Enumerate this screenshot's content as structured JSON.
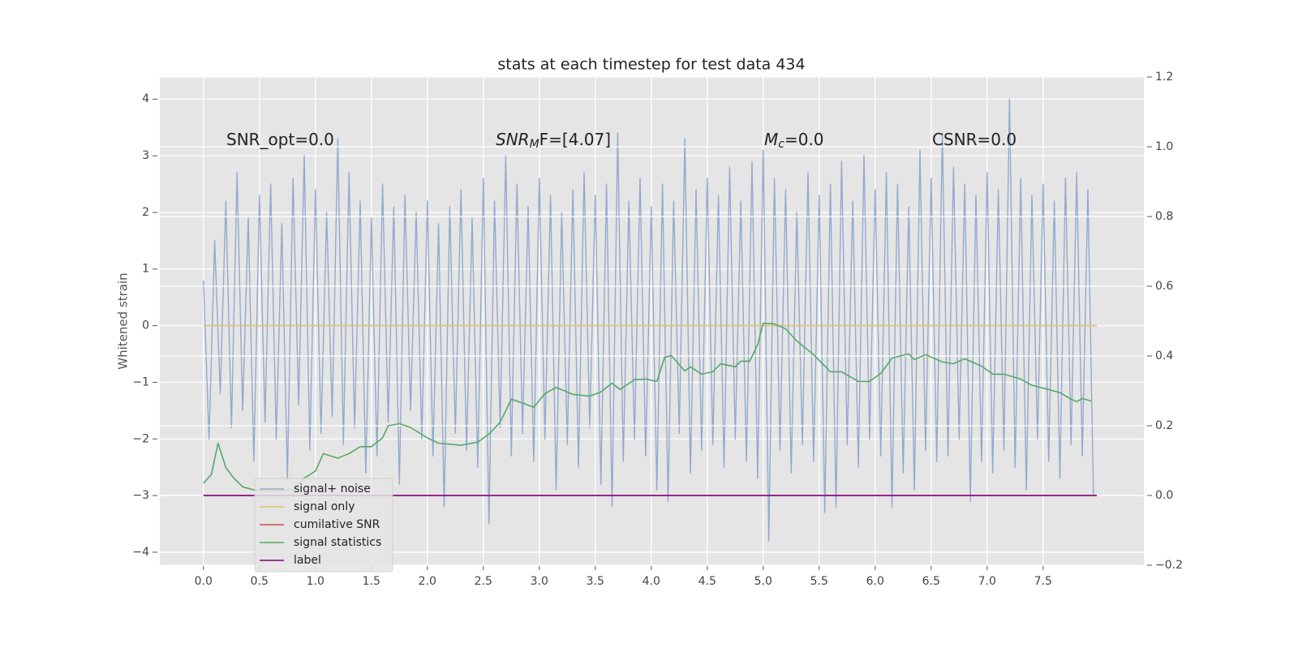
{
  "chart_data": {
    "type": "line",
    "title": "stats at each timestep for test data 434",
    "ylabel": "Whitened strain",
    "annotations": [
      {
        "parts": [
          "SNR_opt=0.0"
        ]
      },
      {
        "parts": [
          "SNR",
          "M",
          "F=[4.07]"
        ]
      },
      {
        "parts": [
          "M",
          "c",
          "=0.0"
        ]
      },
      {
        "parts": [
          "CSNR=0.0"
        ]
      }
    ],
    "xlim": [
      -0.39,
      8.4
    ],
    "ylim": [
      -4.23,
      4.39
    ],
    "y2lim": [
      -0.2,
      1.2
    ],
    "xticks": [
      {
        "value": 0,
        "label": "0.0"
      },
      {
        "value": 0.5,
        "label": "0.5"
      },
      {
        "value": 1,
        "label": "1.0"
      },
      {
        "value": 1.5,
        "label": "1.5"
      },
      {
        "value": 2,
        "label": "2.0"
      },
      {
        "value": 2.5,
        "label": "2.5"
      },
      {
        "value": 3,
        "label": "3.0"
      },
      {
        "value": 3.5,
        "label": "3.5"
      },
      {
        "value": 4,
        "label": "4.0"
      },
      {
        "value": 4.5,
        "label": "4.5"
      },
      {
        "value": 5,
        "label": "5.0"
      },
      {
        "value": 5.5,
        "label": "5.5"
      },
      {
        "value": 6,
        "label": "6.0"
      },
      {
        "value": 6.5,
        "label": "6.5"
      },
      {
        "value": 7,
        "label": "7.0"
      },
      {
        "value": 7.5,
        "label": "7.5"
      }
    ],
    "yticks": [
      {
        "value": -4,
        "label": "−4"
      },
      {
        "value": -3,
        "label": "−3"
      },
      {
        "value": -2,
        "label": "−2"
      },
      {
        "value": -1,
        "label": "−1"
      },
      0,
      1,
      2,
      3,
      4
    ],
    "y2ticks": [
      {
        "value": -0.2,
        "label": "−0.2"
      },
      {
        "value": 0,
        "label": "0.0"
      },
      {
        "value": 0.2,
        "label": "0.2"
      },
      {
        "value": 0.4,
        "label": "0.4"
      },
      {
        "value": 0.6,
        "label": "0.6"
      },
      {
        "value": 0.8,
        "label": "0.8"
      },
      {
        "value": 1,
        "label": "1.0"
      },
      {
        "value": 1.2,
        "label": "1.2"
      }
    ],
    "grid": true,
    "legend": "lower left",
    "series": [
      {
        "name": "signal+ noise",
        "color": "#92a9cf",
        "axis": "y",
        "x": [
          0,
          0.05,
          0.1,
          0.15,
          0.2,
          0.25,
          0.3,
          0.35,
          0.4,
          0.45,
          0.5,
          0.55,
          0.6,
          0.65,
          0.7,
          0.75,
          0.8,
          0.85,
          0.9,
          0.95,
          1,
          1.05,
          1.1,
          1.15,
          1.2,
          1.25,
          1.3,
          1.35,
          1.4,
          1.45,
          1.5,
          1.55,
          1.6,
          1.65,
          1.7,
          1.75,
          1.8,
          1.85,
          1.9,
          1.95,
          2,
          2.05,
          2.1,
          2.15,
          2.2,
          2.25,
          2.3,
          2.35,
          2.4,
          2.45,
          2.5,
          2.55,
          2.6,
          2.65,
          2.7,
          2.75,
          2.8,
          2.85,
          2.9,
          2.95,
          3,
          3.05,
          3.1,
          3.15,
          3.2,
          3.25,
          3.3,
          3.35,
          3.4,
          3.45,
          3.5,
          3.55,
          3.6,
          3.65,
          3.7,
          3.75,
          3.8,
          3.85,
          3.9,
          3.95,
          4,
          4.05,
          4.1,
          4.15,
          4.2,
          4.25,
          4.3,
          4.35,
          4.4,
          4.45,
          4.5,
          4.55,
          4.6,
          4.65,
          4.7,
          4.75,
          4.8,
          4.85,
          4.9,
          4.95,
          5,
          5.05,
          5.1,
          5.15,
          5.2,
          5.25,
          5.3,
          5.35,
          5.4,
          5.45,
          5.5,
          5.55,
          5.6,
          5.65,
          5.7,
          5.75,
          5.8,
          5.85,
          5.9,
          5.95,
          6,
          6.05,
          6.1,
          6.15,
          6.2,
          6.25,
          6.3,
          6.35,
          6.4,
          6.45,
          6.5,
          6.55,
          6.6,
          6.65,
          6.7,
          6.75,
          6.8,
          6.85,
          6.9,
          6.95,
          7,
          7.05,
          7.1,
          7.15,
          7.2,
          7.25,
          7.3,
          7.35,
          7.4,
          7.45,
          7.5,
          7.55,
          7.6,
          7.65,
          7.7,
          7.75,
          7.8,
          7.85,
          7.9,
          7.95
        ],
        "values": [
          0.8,
          -2.0,
          1.5,
          -1.2,
          2.2,
          -1.8,
          2.7,
          -1.5,
          1.9,
          -2.4,
          2.3,
          -1.7,
          2.5,
          -2.0,
          1.8,
          -2.7,
          2.6,
          -1.4,
          3.0,
          -2.2,
          2.4,
          -1.9,
          2.0,
          -1.6,
          3.3,
          -2.1,
          2.7,
          -1.8,
          2.2,
          -2.6,
          1.9,
          -2.3,
          2.5,
          -1.7,
          2.1,
          -2.8,
          2.3,
          -1.5,
          2.0,
          -2.0,
          2.2,
          -2.3,
          1.8,
          -3.2,
          2.1,
          -1.9,
          2.4,
          -2.2,
          1.9,
          -2.5,
          2.6,
          -3.5,
          2.2,
          -1.8,
          3.0,
          -2.3,
          2.5,
          -1.9,
          2.1,
          -2.4,
          2.6,
          -2.0,
          2.3,
          -2.9,
          2.0,
          -2.1,
          2.4,
          -2.5,
          2.7,
          -1.8,
          2.3,
          -2.8,
          2.5,
          -3.2,
          3.4,
          -2.4,
          2.2,
          -2.0,
          2.6,
          -2.3,
          2.1,
          -2.9,
          2.5,
          -3.1,
          2.2,
          -1.9,
          3.3,
          -2.6,
          2.4,
          -2.2,
          2.6,
          -2.1,
          2.3,
          -2.5,
          2.8,
          -2.0,
          2.2,
          -2.4,
          2.9,
          -2.7,
          3.1,
          -3.8,
          2.6,
          -2.2,
          2.4,
          -2.6,
          2.0,
          -2.1,
          2.7,
          -2.4,
          2.3,
          -3.3,
          2.5,
          -3.2,
          2.9,
          -2.1,
          2.2,
          -2.5,
          3.0,
          -2.0,
          2.4,
          -2.3,
          2.7,
          -3.2,
          2.5,
          -2.6,
          2.1,
          -2.9,
          3.1,
          -2.2,
          2.6,
          -2.4,
          3.4,
          -2.3,
          2.8,
          -2.0,
          2.5,
          -3.1,
          2.3,
          -2.4,
          2.7,
          -2.6,
          2.4,
          -2.2,
          4.0,
          -2.5,
          2.6,
          -2.9,
          2.3,
          -2.0,
          2.5,
          -2.4,
          2.2,
          -2.7,
          2.6,
          -2.1,
          2.7,
          -2.3,
          2.4,
          -3.0
        ]
      },
      {
        "name": "signal only",
        "color": "#dcc172",
        "axis": "y",
        "x": [
          0,
          7.98
        ],
        "values": [
          0,
          0
        ]
      },
      {
        "name": "cumilative SNR",
        "color": "#c44e52",
        "axis": "y2",
        "x": [
          0,
          7.98
        ],
        "values": [
          0,
          0
        ]
      },
      {
        "name": "signal statistics",
        "color": "#55a868",
        "axis": "y2",
        "x": [
          0,
          0.07,
          0.13,
          0.2,
          0.27,
          0.35,
          0.45,
          0.6,
          0.8,
          0.9,
          1,
          1.07,
          1.2,
          1.3,
          1.4,
          1.5,
          1.6,
          1.65,
          1.75,
          1.85,
          2,
          2.1,
          2.3,
          2.45,
          2.55,
          2.65,
          2.75,
          2.85,
          2.95,
          3.05,
          3.15,
          3.3,
          3.45,
          3.55,
          3.65,
          3.72,
          3.85,
          3.95,
          4.05,
          4.12,
          4.18,
          4.3,
          4.35,
          4.45,
          4.55,
          4.62,
          4.75,
          4.8,
          4.88,
          4.95,
          5,
          5.1,
          5.2,
          5.3,
          5.45,
          5.6,
          5.7,
          5.85,
          5.95,
          6.05,
          6.15,
          6.3,
          6.35,
          6.45,
          6.6,
          6.7,
          6.8,
          6.95,
          7.05,
          7.15,
          7.3,
          7.4,
          7.55,
          7.65,
          7.75,
          7.8,
          7.85,
          7.93
        ],
        "values": [
          0.035,
          0.06,
          0.15,
          0.08,
          0.05,
          0.025,
          0.016,
          0.012,
          0.016,
          0.05,
          0.07,
          0.12,
          0.107,
          0.12,
          0.14,
          0.14,
          0.165,
          0.2,
          0.206,
          0.195,
          0.165,
          0.15,
          0.144,
          0.153,
          0.176,
          0.21,
          0.276,
          0.265,
          0.253,
          0.292,
          0.31,
          0.29,
          0.285,
          0.297,
          0.322,
          0.304,
          0.332,
          0.334,
          0.327,
          0.397,
          0.401,
          0.357,
          0.369,
          0.348,
          0.355,
          0.378,
          0.369,
          0.385,
          0.385,
          0.432,
          0.494,
          0.492,
          0.478,
          0.443,
          0.404,
          0.355,
          0.355,
          0.327,
          0.327,
          0.35,
          0.394,
          0.406,
          0.39,
          0.404,
          0.383,
          0.378,
          0.392,
          0.371,
          0.348,
          0.348,
          0.334,
          0.316,
          0.304,
          0.295,
          0.276,
          0.269,
          0.278,
          0.271
        ]
      },
      {
        "name": "label",
        "color": "#800080",
        "axis": "y2",
        "x": [
          0,
          7.98
        ],
        "values": [
          0,
          0
        ]
      }
    ]
  }
}
